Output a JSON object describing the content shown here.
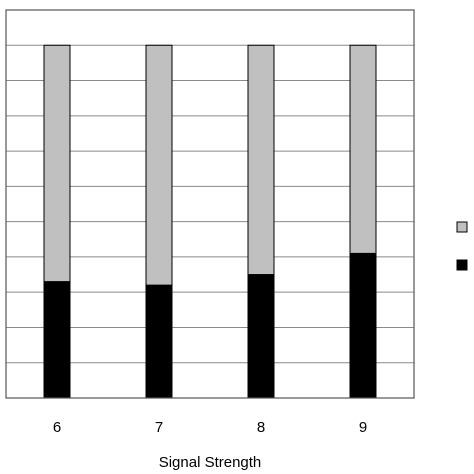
{
  "chart_data": {
    "type": "bar",
    "stacked": true,
    "categories": [
      "6",
      "7",
      "8",
      "9"
    ],
    "series": [
      {
        "color": "#000000",
        "values": [
          0.33,
          0.32,
          0.35,
          0.41
        ]
      },
      {
        "color": "#c0c0c0",
        "values": [
          0.67,
          0.68,
          0.65,
          0.59
        ]
      }
    ],
    "xlabel": "Signal Strength",
    "ylabel": "",
    "ylim": [
      0,
      1.1
    ],
    "grid": true,
    "legend": {
      "placement": "right",
      "entries": [
        "",
        ""
      ]
    }
  }
}
